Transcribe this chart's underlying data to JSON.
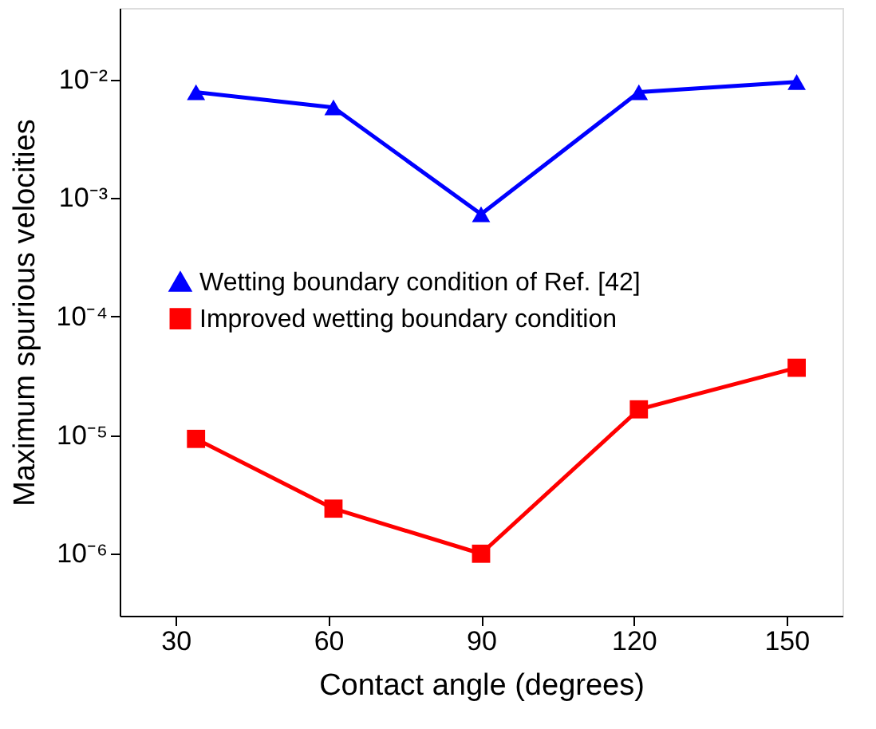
{
  "chart_data": {
    "type": "line",
    "xlabel": "Contact angle (degrees)",
    "ylabel": "Maximum spurious velocities",
    "x": [
      34,
      61,
      90,
      121,
      152
    ],
    "series": [
      {
        "name": "Wetting boundary condition of Ref. [42]",
        "color": "#0000ff",
        "marker": "triangle",
        "values": [
          0.0078,
          0.0058,
          0.00073,
          0.0078,
          0.0095
        ]
      },
      {
        "name": "Improved wetting boundary condition",
        "color": "#ff0000",
        "marker": "square",
        "values": [
          9.3e-06,
          2.4e-06,
          1e-06,
          1.65e-05,
          3.7e-05
        ]
      }
    ],
    "log": "y",
    "xlim": [
      19,
      161
    ],
    "xticks": [
      30,
      60,
      90,
      120,
      150
    ],
    "ylim": [
      3e-07,
      0.04
    ],
    "yticks": [
      {
        "value": 1e-06,
        "label": "10⁻⁶"
      },
      {
        "value": 1e-05,
        "label": "10⁻⁵"
      },
      {
        "value": 0.0001,
        "label": "10⁻⁴"
      },
      {
        "value": 0.001,
        "label": "10⁻³"
      },
      {
        "value": 0.01,
        "label": "10⁻²"
      }
    ],
    "grid": false,
    "legend": "left",
    "line_style": "solid"
  }
}
